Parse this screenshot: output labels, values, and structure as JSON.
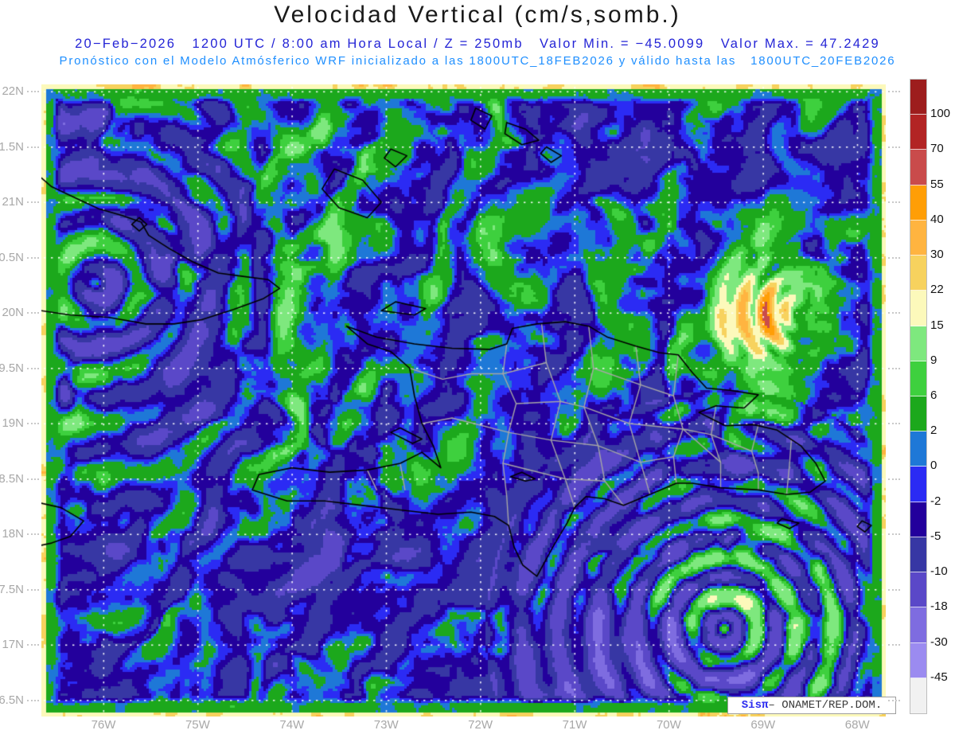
{
  "header": {
    "title": "Velocidad Vertical (cm/s,somb.)",
    "line1": "20−Feb−2026   1200 UTC / 8:00 am Hora Local / Z = 250mb   Valor Min. = −45.0099   Valor Max. = 47.2429",
    "line2": "Pronóstico con el Modelo Atmósferico WRF inicializado a las 1800UTC_18FEB2026 y válido hasta las   1800UTC_20FEB2026"
  },
  "attribution": {
    "brand": "Sisπ",
    "rest": "– ONAMET/REP.DOM."
  },
  "axes": {
    "lat_labels": [
      "22N",
      "1.5N",
      "21N",
      "0.5N",
      "20N",
      "9.5N",
      "19N",
      "8.5N",
      "18N",
      "7.5N",
      "17N",
      "6.5N"
    ],
    "lon_labels": [
      "76W",
      "75W",
      "74W",
      "73W",
      "72W",
      "71W",
      "70W",
      "69W",
      "68W"
    ]
  },
  "colorbar": {
    "tick_labels": [
      "100",
      "70",
      "55",
      "40",
      "30",
      "22",
      "15",
      "9",
      "6",
      "2",
      "0",
      "-2",
      "-5",
      "-10",
      "-18",
      "-30",
      "-45"
    ],
    "colors_top_to_bottom": [
      "#9d1d1d",
      "#b22424",
      "#c94b4b",
      "#ff9e06",
      "#ffb440",
      "#f7d25e",
      "#fcf9bb",
      "#7ee87e",
      "#3ed03e",
      "#1ca81c",
      "#1e78d7",
      "#2b2bf4",
      "#23009c",
      "#3737a4",
      "#5a48c8",
      "#7e6ce0",
      "#9b8bf0",
      "#f1f1f1"
    ]
  },
  "colors": {
    "subtitle_blue": "#2424d6",
    "model_line_blue": "#1f8fff",
    "axis_label_gray": "#a8a8a8",
    "title_black": "#1a1a1a"
  },
  "chart_data": {
    "type": "heatmap",
    "title": "Velocidad Vertical (cm/s,somb.)",
    "variable": "Velocidad Vertical",
    "units": "cm/s",
    "pressure_level": "250mb",
    "valid_datetime": "20-Feb-2026 1200 UTC / 8:00 am Hora Local",
    "model": "WRF",
    "initialized": "1800UTC_18FEB2026",
    "valid_until": "1800UTC_20FEB2026",
    "value_min": -45.0099,
    "value_max": 47.2429,
    "contour_levels": [
      -45,
      -30,
      -18,
      -10,
      -5,
      -2,
      0,
      2,
      6,
      9,
      15,
      22,
      30,
      40,
      55,
      70,
      100
    ],
    "palette_low_to_high": [
      "#f1f1f1",
      "#9b8bf0",
      "#7e6ce0",
      "#5a48c8",
      "#3737a4",
      "#23009c",
      "#2b2bf4",
      "#1e78d7",
      "#1ca81c",
      "#3ed03e",
      "#7ee87e",
      "#fcf9bb",
      "#f7d25e",
      "#ffb440",
      "#ff9e06",
      "#c94b4b",
      "#b22424",
      "#9d1d1d"
    ],
    "x_axis": {
      "ticks": [
        "76W",
        "75W",
        "74W",
        "73W",
        "72W",
        "71W",
        "70W",
        "69W",
        "68W"
      ]
    },
    "y_axis": {
      "ticks": [
        "22N",
        "1.5N",
        "21N",
        "0.5N",
        "20N",
        "9.5N",
        "19N",
        "8.5N",
        "18N",
        "7.5N",
        "17N",
        "6.5N"
      ]
    },
    "legend_position": "right",
    "grid": "white-dotted",
    "region": "Hispaniola / Caribbean"
  }
}
